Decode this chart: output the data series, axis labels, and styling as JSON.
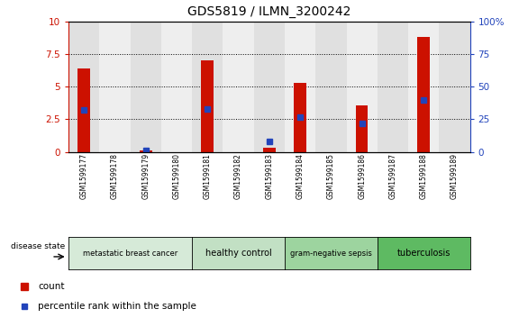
{
  "title": "GDS5819 / ILMN_3200242",
  "samples": [
    "GSM1599177",
    "GSM1599178",
    "GSM1599179",
    "GSM1599180",
    "GSM1599181",
    "GSM1599182",
    "GSM1599183",
    "GSM1599184",
    "GSM1599185",
    "GSM1599186",
    "GSM1599187",
    "GSM1599188",
    "GSM1599189"
  ],
  "counts": [
    6.4,
    0.0,
    0.15,
    0.0,
    7.0,
    0.0,
    0.3,
    5.3,
    0.0,
    3.6,
    0.0,
    8.8,
    0.0
  ],
  "percentile_ranks": [
    32,
    0.0,
    1.0,
    0.0,
    33,
    0.0,
    8,
    27,
    0.0,
    22,
    0.0,
    40,
    0.0
  ],
  "ylim_left": [
    0,
    10
  ],
  "ylim_right": [
    0,
    100
  ],
  "yticks_left": [
    0,
    2.5,
    5.0,
    7.5,
    10
  ],
  "yticks_right": [
    0,
    25,
    50,
    75,
    100
  ],
  "ytick_labels_left": [
    "0",
    "2.5",
    "5",
    "7.5",
    "10"
  ],
  "ytick_labels_right": [
    "0",
    "25",
    "50",
    "75",
    "100%"
  ],
  "disease_groups": [
    {
      "label": "metastatic breast cancer",
      "start": 0,
      "end": 4,
      "color": "#d6ead8"
    },
    {
      "label": "healthy control",
      "start": 4,
      "end": 7,
      "color": "#c2e0c4"
    },
    {
      "label": "gram-negative sepsis",
      "start": 7,
      "end": 10,
      "color": "#9dd49f"
    },
    {
      "label": "tuberculosis",
      "start": 10,
      "end": 13,
      "color": "#5eba62"
    }
  ],
  "bar_color": "#cc1100",
  "percentile_color": "#2244bb",
  "left_axis_color": "#cc1100",
  "right_axis_color": "#2244bb",
  "col_bg_even": "#e0e0e0",
  "col_bg_odd": "#eeeeee"
}
